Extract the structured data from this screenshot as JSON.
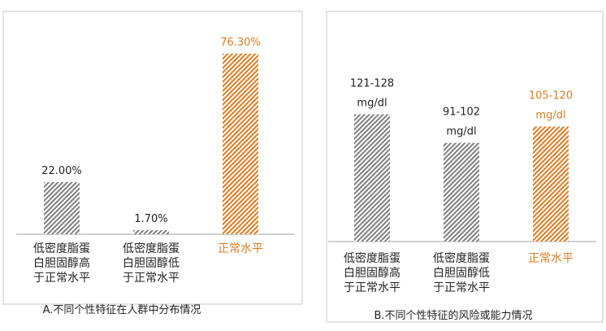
{
  "colors": {
    "gray_hatch": "#7f7f7f",
    "orange_hatch": "#e07b22",
    "orange_text": "#e07b22",
    "text": "#222222"
  },
  "chart_data": [
    {
      "type": "bar",
      "title": "A.不同个性特征在人群中分布情况",
      "categories": [
        [
          "低密度脂蛋",
          "白胆固醇高",
          "于正常水平"
        ],
        [
          "低密度脂蛋",
          "白胆固醇低",
          "于正常水平"
        ],
        [
          "正常水平"
        ]
      ],
      "values": [
        22.0,
        1.7,
        76.3
      ],
      "data_labels": [
        [
          "22.00%"
        ],
        [
          "1.70%"
        ],
        [
          "76.30%"
        ]
      ],
      "series_colors": [
        "gray",
        "gray",
        "orange"
      ],
      "ylim": [
        0,
        90
      ],
      "grid": false
    },
    {
      "type": "bar",
      "title": "B.不同个性特征的风险或能力情况",
      "categories": [
        [
          "低密度脂蛋",
          "白胆固醇高",
          "于正常水平"
        ],
        [
          "低密度脂蛋",
          "白胆固醇低",
          "于正常水平"
        ],
        [
          "正常水平"
        ]
      ],
      "values": [
        124.5,
        96.5,
        112.5
      ],
      "data_labels": [
        [
          "121-128",
          "mg/dl"
        ],
        [
          "91-102",
          "mg/dl"
        ],
        [
          "105-120",
          "mg/dl"
        ]
      ],
      "series_colors": [
        "gray",
        "gray",
        "orange"
      ],
      "ylim": [
        0,
        210
      ],
      "grid": false
    }
  ]
}
